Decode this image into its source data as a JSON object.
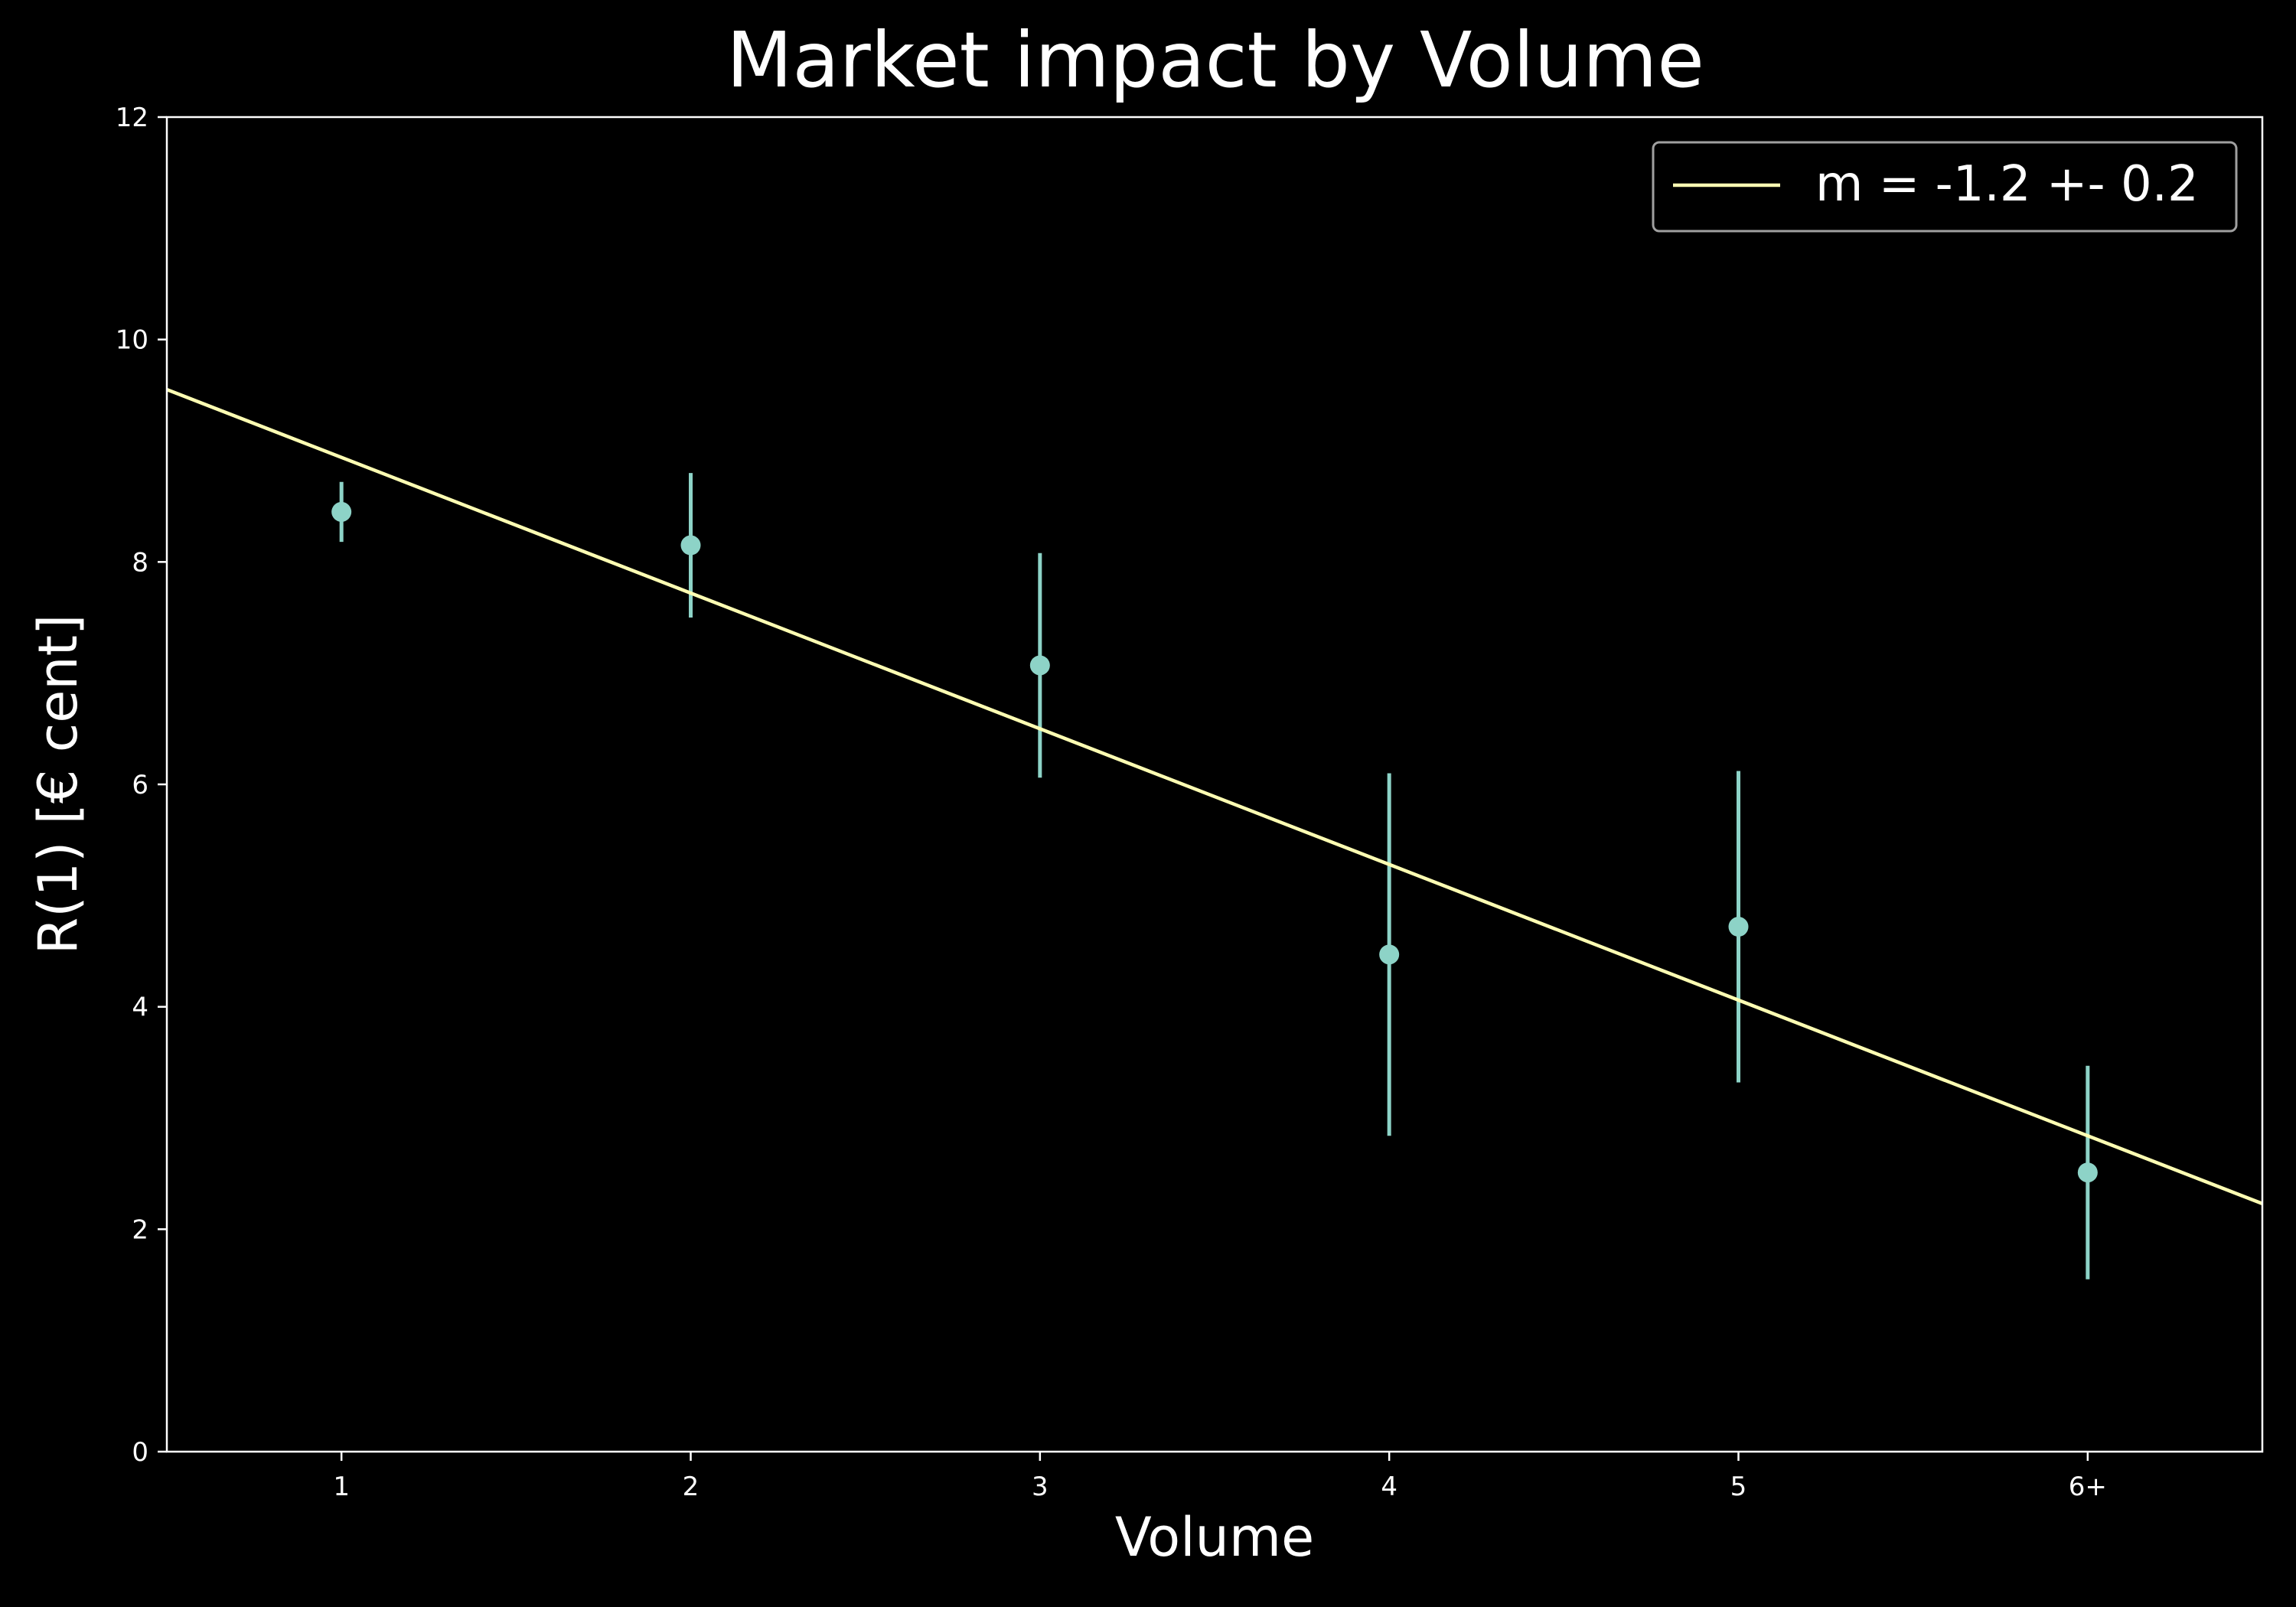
{
  "chart_data": {
    "type": "scatter",
    "title": "Market impact by Volume",
    "xlabel": "Volume",
    "ylabel": "R(1) [€ cent]",
    "xlim": [
      0.5,
      6.5
    ],
    "ylim": [
      0,
      12
    ],
    "x_ticks": [
      1,
      2,
      3,
      4,
      5,
      6
    ],
    "x_tick_labels": [
      "1",
      "2",
      "3",
      "4",
      "5",
      "6+"
    ],
    "y_ticks": [
      0,
      2,
      4,
      6,
      8,
      10,
      12
    ],
    "y_tick_labels": [
      "0",
      "2",
      "4",
      "6",
      "8",
      "10",
      "12"
    ],
    "grid": false,
    "legend_position": "top-right",
    "series": [
      {
        "kind": "errorbar",
        "color": "#8dd3c7",
        "points": [
          {
            "x": 1,
            "y": 8.45,
            "err": 0.27
          },
          {
            "x": 2,
            "y": 8.15,
            "err": 0.65
          },
          {
            "x": 3,
            "y": 7.07,
            "err": 1.01
          },
          {
            "x": 4,
            "y": 4.47,
            "err": 1.63
          },
          {
            "x": 5,
            "y": 4.72,
            "err": 1.4
          },
          {
            "x": 6,
            "y": 2.51,
            "err": 0.96
          }
        ]
      },
      {
        "kind": "line",
        "name": "m = -1.2 +- 0.2",
        "color": "#ffffb3",
        "x": [
          0.5,
          6.5
        ],
        "y": [
          9.55,
          2.23
        ]
      }
    ]
  }
}
